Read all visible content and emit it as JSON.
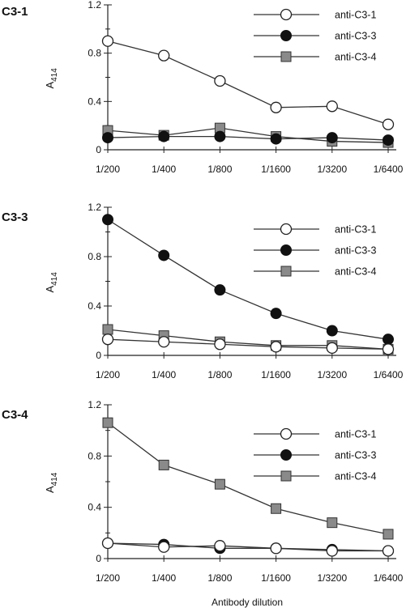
{
  "xlabel": "Antibody dilution",
  "chart_data": [
    {
      "type": "line",
      "panel_label": "C3-1",
      "ylabel": "A414",
      "ylim": [
        0,
        1.2
      ],
      "yticks": [
        "0",
        "0.4",
        "0.8",
        "1.2"
      ],
      "categories": [
        "1/200",
        "1/400",
        "1/800",
        "1/1600",
        "1/3200",
        "1/6400"
      ],
      "legend_position": "top-right",
      "series": [
        {
          "name": "anti-C3-1",
          "marker": "open-circle",
          "color": "#ffffff",
          "values": [
            0.9,
            0.78,
            0.57,
            0.35,
            0.36,
            0.21
          ]
        },
        {
          "name": "anti-C3-3",
          "marker": "filled-circle",
          "color": "#111111",
          "values": [
            0.1,
            0.11,
            0.11,
            0.09,
            0.1,
            0.08
          ]
        },
        {
          "name": "anti-C3-4",
          "marker": "gray-square",
          "color": "#888888",
          "values": [
            0.16,
            0.12,
            0.18,
            0.11,
            0.07,
            0.06
          ]
        }
      ]
    },
    {
      "type": "line",
      "panel_label": "C3-3",
      "ylabel": "A414",
      "ylim": [
        0,
        1.2
      ],
      "yticks": [
        "0",
        "0.4",
        "0.8",
        "1.2"
      ],
      "categories": [
        "1/200",
        "1/400",
        "1/800",
        "1/1600",
        "1/3200",
        "1/6400"
      ],
      "legend_position": "right",
      "series": [
        {
          "name": "anti-C3-1",
          "marker": "open-circle",
          "color": "#ffffff",
          "values": [
            0.13,
            0.11,
            0.09,
            0.07,
            0.06,
            0.05
          ]
        },
        {
          "name": "anti-C3-3",
          "marker": "filled-circle",
          "color": "#111111",
          "values": [
            1.1,
            0.81,
            0.53,
            0.34,
            0.2,
            0.13
          ]
        },
        {
          "name": "anti-C3-4",
          "marker": "gray-square",
          "color": "#888888",
          "values": [
            0.21,
            0.16,
            0.11,
            0.08,
            0.08,
            0.05
          ]
        }
      ]
    },
    {
      "type": "line",
      "panel_label": "C3-4",
      "ylabel": "A414",
      "ylim": [
        0,
        1.2
      ],
      "yticks": [
        "0",
        "0.4",
        "0.8",
        "1.2"
      ],
      "categories": [
        "1/200",
        "1/400",
        "1/800",
        "1/1600",
        "1/3200",
        "1/6400"
      ],
      "legend_position": "right",
      "series": [
        {
          "name": "anti-C3-1",
          "marker": "open-circle",
          "color": "#ffffff",
          "values": [
            0.12,
            0.09,
            0.1,
            0.08,
            0.06,
            0.06
          ]
        },
        {
          "name": "anti-C3-3",
          "marker": "filled-circle",
          "color": "#111111",
          "values": [
            0.12,
            0.11,
            0.08,
            0.08,
            0.07,
            0.06
          ]
        },
        {
          "name": "anti-C3-4",
          "marker": "gray-square",
          "color": "#888888",
          "values": [
            1.06,
            0.73,
            0.58,
            0.39,
            0.28,
            0.19
          ]
        }
      ]
    }
  ]
}
